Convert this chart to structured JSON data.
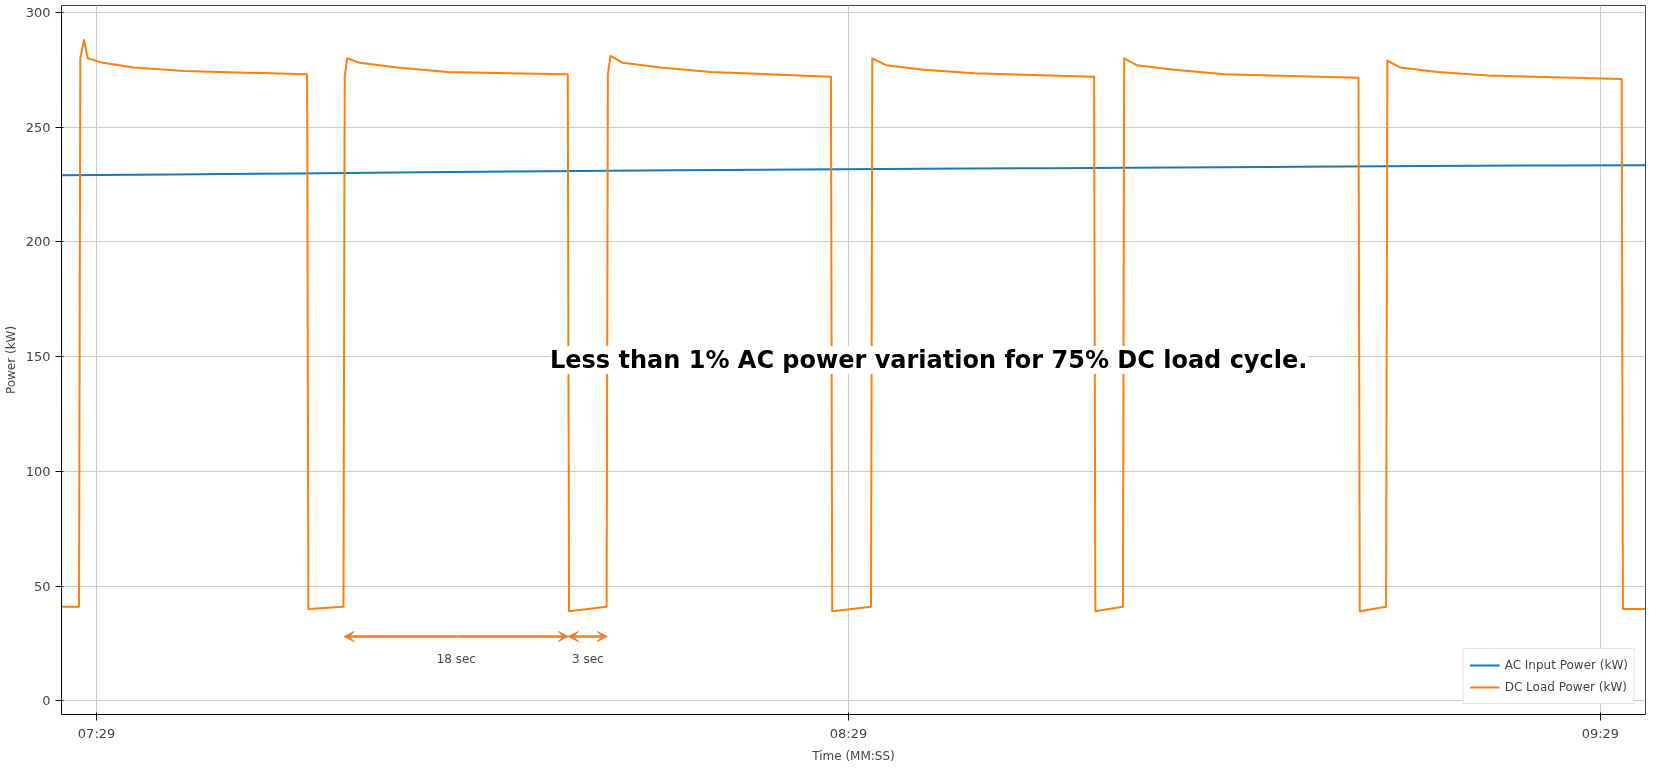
{
  "chart_data": {
    "type": "line",
    "xlabel": "Time (MM:SS)",
    "ylabel": "Power (kW)",
    "xlim": [
      446.2,
      572.6
    ],
    "ylim": [
      -6,
      303
    ],
    "xticks": [
      {
        "value": 449,
        "label": "07:29"
      },
      {
        "value": 509,
        "label": "08:29"
      },
      {
        "value": 569,
        "label": "09:29"
      }
    ],
    "yticks": [
      0,
      50,
      100,
      150,
      200,
      250,
      300
    ],
    "grid": true,
    "legend": "bottom right",
    "series": [
      {
        "name": "AC Input Power (kW)",
        "color": "#1f77b4",
        "x": [
          446.2,
          455,
          465,
          475,
          485,
          495,
          505,
          515,
          525,
          535,
          545,
          555,
          565,
          572.6
        ],
        "values": [
          229,
          229.3,
          229.8,
          230.3,
          230.8,
          231.2,
          231.5,
          231.8,
          232.1,
          232.4,
          232.7,
          233,
          233.3,
          233.4
        ]
      },
      {
        "name": "DC Load Power (kW)",
        "color": "#ff7f0e",
        "x": [
          446.2,
          447.6,
          447.7,
          448.0,
          448.3,
          449.5,
          452,
          456,
          465.8,
          465.9,
          468.7,
          468.8,
          469.0,
          470,
          473,
          477,
          486.6,
          486.7,
          489.7,
          489.8,
          490.0,
          491,
          494,
          498,
          507.6,
          507.7,
          510.8,
          510.9,
          512,
          515,
          519,
          528.6,
          528.7,
          530.9,
          531.0,
          532,
          535,
          539,
          549.7,
          549.8,
          551.9,
          552.0,
          553,
          556,
          560,
          570.7,
          570.8,
          572.6
        ],
        "values": [
          41,
          41,
          280,
          288,
          280,
          278,
          276,
          274.5,
          273,
          40,
          41,
          272,
          280,
          278,
          276,
          274,
          273,
          39,
          41,
          273,
          281,
          278,
          276,
          274,
          272,
          39,
          41,
          280,
          277,
          275,
          273.5,
          272,
          39,
          41,
          280,
          277,
          275,
          273,
          271.5,
          39,
          41,
          279,
          276,
          274,
          272.5,
          271,
          40,
          40
        ]
      }
    ],
    "annotations": [
      "Less than 1% AC power variation for 75% DC load cycle.",
      "18 sec",
      "3 sec"
    ]
  }
}
